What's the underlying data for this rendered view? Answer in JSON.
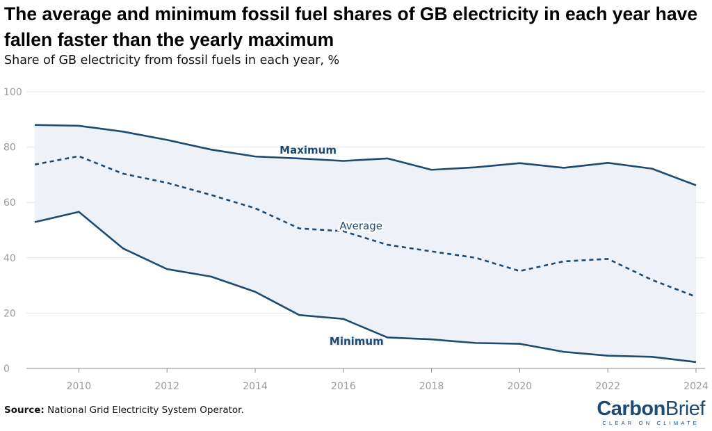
{
  "chart_data": {
    "type": "line",
    "title": "The average and minimum fossil fuel shares of GB electricity in each year have fallen faster than the yearly maximum",
    "subtitle": "Share of GB electricity from fossil fuels in each year, %",
    "xlabel": "",
    "ylabel": "",
    "xlim": [
      2009,
      2024
    ],
    "ylim": [
      0,
      100
    ],
    "x": [
      2009,
      2010,
      2011,
      2012,
      2013,
      2014,
      2015,
      2016,
      2017,
      2018,
      2019,
      2020,
      2021,
      2022,
      2023,
      2024
    ],
    "xticks": [
      2010,
      2012,
      2014,
      2016,
      2018,
      2020,
      2022,
      2024
    ],
    "yticks": [
      0,
      20,
      40,
      60,
      80,
      100
    ],
    "series": [
      {
        "name": "Maximum",
        "style": "solid",
        "values": [
          88.0,
          87.7,
          85.6,
          82.6,
          79.1,
          76.6,
          75.9,
          75.0,
          75.9,
          71.8,
          72.7,
          74.2,
          72.5,
          74.3,
          72.2,
          66.2
        ]
      },
      {
        "name": "Average",
        "style": "dashed",
        "values": [
          73.7,
          76.7,
          70.4,
          67.1,
          62.7,
          57.9,
          50.6,
          49.6,
          44.7,
          42.3,
          40.0,
          35.2,
          38.7,
          39.6,
          32.0,
          25.9
        ]
      },
      {
        "name": "Minimum",
        "style": "solid",
        "values": [
          52.9,
          56.6,
          43.4,
          35.9,
          33.2,
          27.7,
          19.3,
          17.9,
          11.2,
          10.5,
          9.2,
          8.9,
          6.0,
          4.6,
          4.2,
          2.3
        ]
      }
    ],
    "colors": {
      "line": "#1d4a73",
      "band": "#eef2f8",
      "grid": "#e6e6e6",
      "axis": "#888888"
    }
  },
  "source_label": "Source:",
  "source_text": "National Grid Electricity System Operator.",
  "logo": {
    "bold": "Carbon",
    "thin": "Brief",
    "tagline": "CLEAR ON CLIMATE"
  }
}
